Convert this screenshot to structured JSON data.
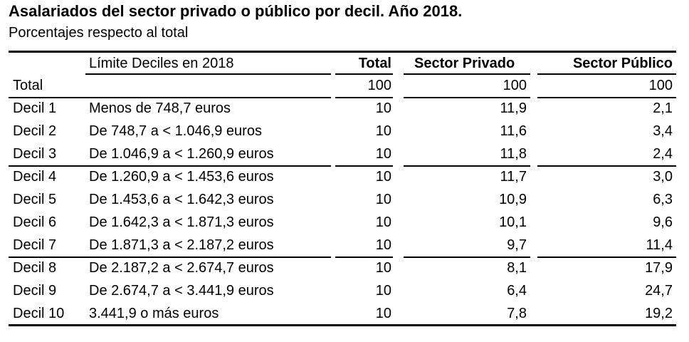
{
  "header": {
    "title": "Asalariados del sector privado o público por decil. Año 2018.",
    "subtitle": "Porcentajes respecto al total"
  },
  "table": {
    "columns": [
      "Límite Deciles en 2018",
      "Total",
      "Sector Privado",
      "Sector Público"
    ],
    "total_row": [
      "Total",
      "100",
      "100",
      "100"
    ],
    "rows": [
      [
        "Decil 1",
        "Menos de 748,7 euros",
        "10",
        "11,9",
        "2,1"
      ],
      [
        "Decil 2",
        "De 748,7 a < 1.046,9 euros",
        "10",
        "11,6",
        "3,4"
      ],
      [
        "Decil 3",
        "De 1.046,9 a < 1.260,9 euros",
        "10",
        "11,8",
        "2,4"
      ],
      [
        "Decil 4",
        "De 1.260,9 a < 1.453,6 euros",
        "10",
        "11,7",
        "3,0"
      ],
      [
        "Decil 5",
        "De 1.453,6 a < 1.642,3 euros",
        "10",
        "10,9",
        "6,3"
      ],
      [
        "Decil 6",
        "De 1.642,3 a < 1.871,3 euros",
        "10",
        "10,1",
        "9,6"
      ],
      [
        "Decil 7",
        "De 1.871,3 a < 2.187,2 euros",
        "10",
        "9,7",
        "11,4"
      ],
      [
        "Decil 8",
        "De 2.187,2 a < 2.674,7 euros",
        "10",
        "8,1",
        "17,9"
      ],
      [
        "Decil 9",
        "De 2.674,7 a < 3.441,9 euros",
        "10",
        "6,4",
        "24,7"
      ],
      [
        "Decil 10",
        "3.441,9 o más euros",
        "10",
        "7,8",
        "19,2"
      ]
    ]
  }
}
